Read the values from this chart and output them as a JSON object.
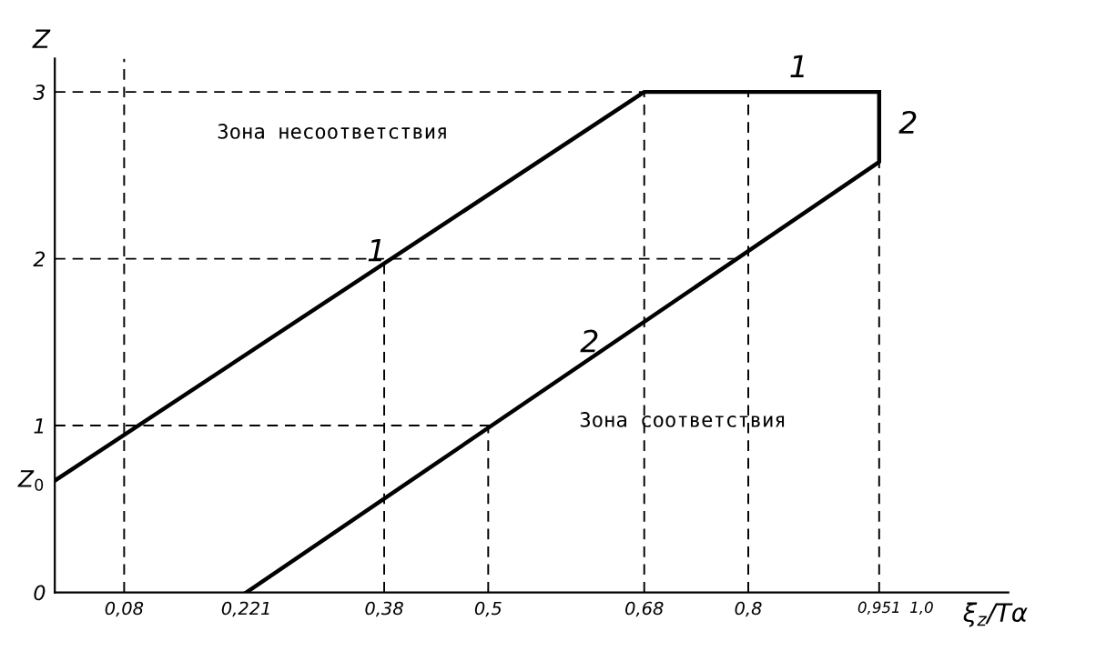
{
  "chart_data": {
    "type": "line",
    "xlabel": "ξ$_{z}$/Tα",
    "ylabel": "Z",
    "xlim": [
      0,
      1.1
    ],
    "ylim": [
      0,
      3.2
    ],
    "xticks": [
      {
        "value": 0.08,
        "label": "0,08"
      },
      {
        "value": 0.221,
        "label": "0,221"
      },
      {
        "value": 0.38,
        "label": "0,38"
      },
      {
        "value": 0.5,
        "label": "0,5"
      },
      {
        "value": 0.68,
        "label": "0,68"
      },
      {
        "value": 0.8,
        "label": "0,8"
      },
      {
        "value": 0.951,
        "label": "0,951"
      },
      {
        "value": 1.0,
        "label": "1,0"
      }
    ],
    "yticks": [
      0,
      1,
      2,
      3
    ],
    "series": [
      {
        "name": "1",
        "color": "#000000",
        "x": [
          0,
          0.68,
          0.951
        ],
        "values": [
          0.67,
          3,
          3
        ]
      },
      {
        "name": "2",
        "color": "#000000",
        "x": [
          0.221,
          0.951,
          0.951
        ],
        "values": [
          0,
          2.58,
          3
        ]
      }
    ],
    "ref_lines": [
      {
        "axis": "y",
        "value": 1,
        "color": "#000000",
        "line_style": "dashed"
      },
      {
        "axis": "y",
        "value": 2,
        "color": "#000000",
        "line_style": "dashed"
      },
      {
        "axis": "y",
        "value": 3,
        "color": "#000000",
        "line_style": "dashed"
      },
      {
        "axis": "x",
        "value": 0.08,
        "color": "#000000",
        "line_style": "dashed"
      },
      {
        "axis": "x",
        "value": 0.38,
        "color": "#000000",
        "line_style": "dashed"
      },
      {
        "axis": "x",
        "value": 0.5,
        "color": "#000000",
        "line_style": "dashed"
      },
      {
        "axis": "x",
        "value": 0.68,
        "color": "#000000",
        "line_style": "dashed"
      },
      {
        "axis": "x",
        "value": 0.8,
        "color": "#000000",
        "line_style": "dashed"
      },
      {
        "axis": "x",
        "value": 0.951,
        "color": "#000000",
        "line_style": "dashed"
      }
    ],
    "annotations": [
      {
        "text": "Z$_{0}$",
        "x": 0,
        "y": 0.67
      },
      "Зона несоответствия",
      "Зона соответствия",
      "1",
      "2"
    ],
    "grid": false,
    "legend": false,
    "marker": "none",
    "line_style": "solid"
  }
}
